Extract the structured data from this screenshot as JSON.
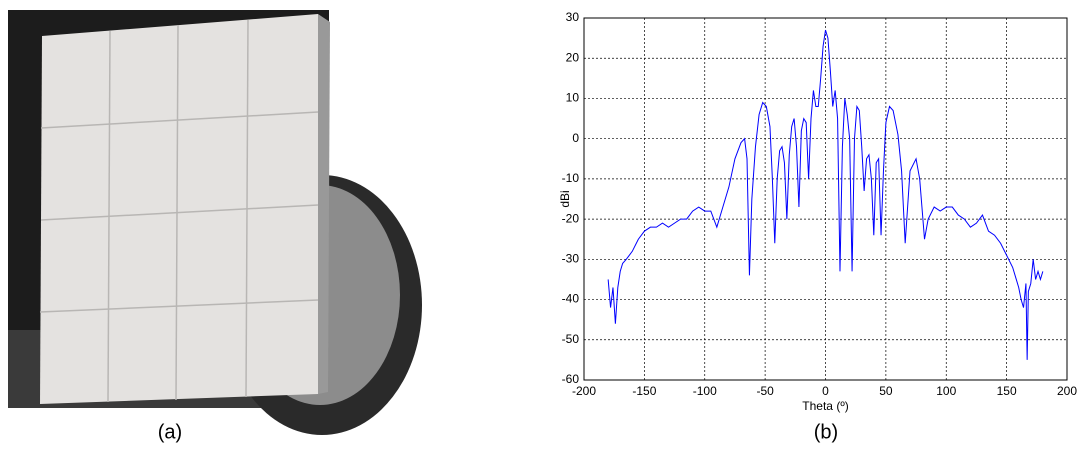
{
  "captions": [
    "(a)",
    "(b)"
  ],
  "chart_data": {
    "type": "line",
    "xlabel": "Theta (º)",
    "ylabel": "dBi",
    "color": "#0000ff",
    "grid": true,
    "xlim": [
      -200,
      200
    ],
    "xticks": [
      -200,
      -150,
      -100,
      -50,
      0,
      50,
      100,
      150,
      200
    ],
    "ylim": [
      -60,
      30
    ],
    "yticks": [
      -60,
      -50,
      -40,
      -30,
      -20,
      -10,
      0,
      10,
      20,
      30
    ],
    "x": [
      -180,
      -178,
      -176,
      -174,
      -172,
      -170,
      -168,
      -165,
      -160,
      -155,
      -150,
      -145,
      -140,
      -135,
      -130,
      -125,
      -120,
      -115,
      -110,
      -105,
      -100,
      -95,
      -90,
      -85,
      -80,
      -75,
      -70,
      -67,
      -65,
      -63,
      -61,
      -58,
      -55,
      -52,
      -49,
      -46,
      -44,
      -42,
      -40,
      -38,
      -36,
      -34,
      -32,
      -30,
      -28,
      -26,
      -24,
      -22,
      -20,
      -18,
      -16,
      -14,
      -12,
      -10,
      -8,
      -6,
      -4,
      -2,
      0,
      2,
      4,
      6,
      8,
      10,
      12,
      14,
      16,
      18,
      20,
      22,
      24,
      26,
      28,
      30,
      32,
      34,
      36,
      38,
      40,
      42,
      44,
      46,
      48,
      50,
      53,
      56,
      60,
      63,
      66,
      70,
      75,
      78,
      82,
      85,
      90,
      95,
      100,
      105,
      110,
      115,
      120,
      125,
      130,
      135,
      140,
      145,
      150,
      155,
      158,
      160,
      162,
      164,
      166,
      167,
      168,
      170,
      172,
      174,
      176,
      178,
      180
    ],
    "values": [
      -35,
      -42,
      -37,
      -46,
      -37,
      -33,
      -31,
      -30,
      -28,
      -25,
      -23,
      -22,
      -22,
      -21,
      -22,
      -21,
      -20,
      -20,
      -18,
      -17,
      -18,
      -18,
      -22,
      -17,
      -12,
      -5,
      -1,
      0,
      -5,
      -34,
      -15,
      -2,
      6,
      9,
      8,
      3,
      -10,
      -26,
      -10,
      -3,
      -2,
      -6,
      -20,
      -4,
      3,
      5,
      -2,
      -17,
      2,
      5,
      4,
      -10,
      5,
      12,
      8,
      8,
      15,
      23,
      27,
      25,
      17,
      8,
      12,
      5,
      -33,
      -2,
      10,
      6,
      0,
      -33,
      0,
      8,
      7,
      -2,
      -13,
      -5,
      -4,
      -10,
      -24,
      -6,
      -5,
      -24,
      -8,
      4,
      8,
      7,
      1,
      -8,
      -26,
      -8,
      -5,
      -10,
      -25,
      -20,
      -17,
      -18,
      -17,
      -17,
      -19,
      -20,
      -22,
      -21,
      -19,
      -23,
      -24,
      -26,
      -29,
      -32,
      -35,
      -37,
      -40,
      -42,
      -36,
      -55,
      -38,
      -36,
      -30,
      -35,
      -33,
      -35,
      -33
    ]
  }
}
